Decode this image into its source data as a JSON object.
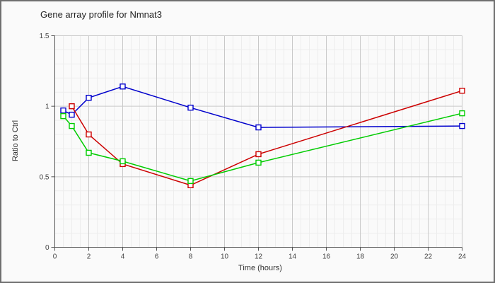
{
  "style": {
    "page_bg": "#fafafa",
    "border_color": "#6f6f6f",
    "axis_color": "#555555",
    "major_grid_color": "#c9c9c9",
    "minor_grid_color": "#ededed",
    "tick_label_color": "#444444",
    "title_color": "#222222",
    "marker_fill": "#ffffff"
  },
  "chart_data": {
    "type": "line",
    "title": "Gene array profile for Nmnat3",
    "xlabel": "Time (hours)",
    "ylabel": "Ratio to Ctrl",
    "xlim": [
      0,
      24
    ],
    "ylim": [
      0,
      1.5
    ],
    "x_tick_values": [
      0,
      2,
      4,
      6,
      8,
      10,
      12,
      14,
      16,
      18,
      20,
      22,
      24
    ],
    "x_tick_labels": [
      "0",
      "2",
      "4",
      "6",
      "8",
      "10",
      "12",
      "14",
      "16",
      "18",
      "20",
      "22",
      "24"
    ],
    "y_tick_values": [
      0,
      0.5,
      1,
      1.5
    ],
    "y_tick_labels": [
      "0",
      "0.5",
      "1",
      "1.5"
    ],
    "x_minor_step": 0.5,
    "y_minor_step": 0.1,
    "grid": true,
    "legend": false,
    "marker": "open-square",
    "series": [
      {
        "name": "blue",
        "color": "#0000cc",
        "x": [
          0.5,
          1,
          2,
          4,
          8,
          12,
          24
        ],
        "y": [
          0.97,
          0.94,
          1.06,
          1.14,
          0.99,
          0.85,
          0.86
        ]
      },
      {
        "name": "red",
        "color": "#cc0000",
        "x": [
          1,
          2,
          4,
          8,
          12,
          24
        ],
        "y": [
          1.0,
          0.8,
          0.59,
          0.44,
          0.66,
          1.11
        ]
      },
      {
        "name": "green",
        "color": "#00cc00",
        "x": [
          0.5,
          1,
          2,
          4,
          8,
          12,
          24
        ],
        "y": [
          0.93,
          0.86,
          0.67,
          0.61,
          0.47,
          0.6,
          0.95
        ]
      }
    ]
  }
}
